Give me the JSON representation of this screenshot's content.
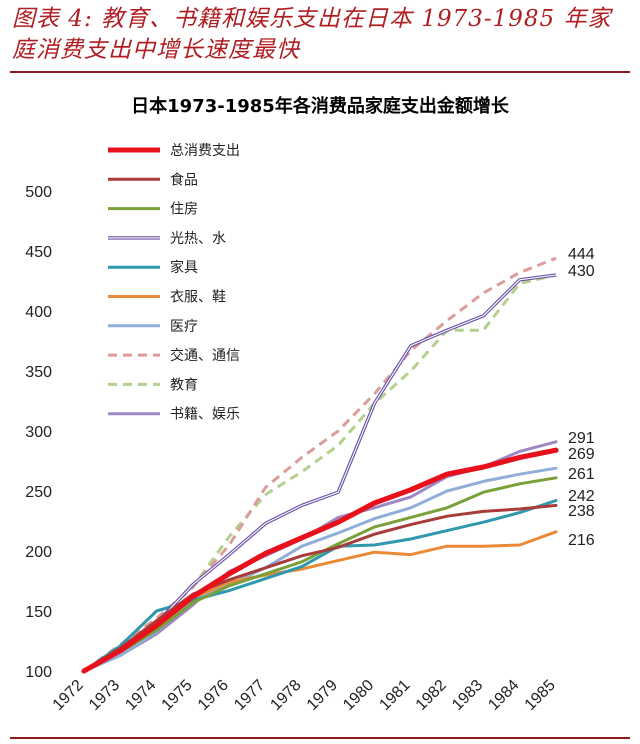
{
  "header": {
    "title": "图表 4:  教育、书籍和娱乐支出在日本 1973-1985 年家庭消费支出中增长速度最快"
  },
  "chart_data": {
    "type": "line",
    "title": "日本1973-1985年各消费品家庭支出金额增长",
    "xlabel": "",
    "ylabel": "",
    "x": [
      "1972",
      "1973",
      "1974",
      "1975",
      "1976",
      "1977",
      "1978",
      "1979",
      "1980",
      "1981",
      "1982",
      "1983",
      "1984",
      "1985"
    ],
    "ylim": [
      100,
      500
    ],
    "yticks": [
      100,
      150,
      200,
      250,
      300,
      350,
      400,
      450,
      500
    ],
    "grid": false,
    "legend_position": "top-left",
    "series": [
      {
        "name": "总消费支出",
        "color": "#e8101a",
        "style": "solid",
        "width": 5,
        "values": [
          100,
          117,
          138,
          162,
          181,
          198,
          211,
          224,
          240,
          251,
          264,
          270,
          278,
          284
        ]
      },
      {
        "name": "食品",
        "color": "#a83c3a",
        "style": "solid",
        "width": 3,
        "values": [
          100,
          119,
          142,
          164,
          176,
          186,
          196,
          203,
          214,
          222,
          229,
          233,
          235,
          238
        ]
      },
      {
        "name": "住房",
        "color": "#7aa039",
        "style": "solid",
        "width": 3,
        "values": [
          100,
          116,
          134,
          157,
          171,
          181,
          191,
          206,
          220,
          228,
          236,
          249,
          256,
          261
        ]
      },
      {
        "name": "光热、水",
        "color": "#6a52a8",
        "style": "double",
        "width": 3,
        "values": [
          100,
          118,
          140,
          172,
          197,
          223,
          238,
          249,
          323,
          371,
          384,
          396,
          426,
          430
        ]
      },
      {
        "name": "家具",
        "color": "#2f97ae",
        "style": "solid",
        "width": 3,
        "values": [
          100,
          121,
          150,
          159,
          167,
          177,
          187,
          204,
          205,
          210,
          217,
          224,
          232,
          242
        ]
      },
      {
        "name": "衣服、鞋",
        "color": "#e98b36",
        "style": "solid",
        "width": 3,
        "values": [
          100,
          117,
          139,
          161,
          174,
          180,
          185,
          192,
          199,
          197,
          204,
          204,
          205,
          216
        ]
      },
      {
        "name": "医疗",
        "color": "#8faed8",
        "style": "solid",
        "width": 3,
        "values": [
          100,
          113,
          133,
          159,
          172,
          186,
          204,
          215,
          227,
          236,
          250,
          258,
          264,
          269
        ]
      },
      {
        "name": "交通、通信",
        "color": "#dc9d9a",
        "style": "dashed",
        "width": 3,
        "values": [
          100,
          122,
          144,
          170,
          205,
          253,
          278,
          300,
          331,
          367,
          392,
          415,
          432,
          444
        ]
      },
      {
        "name": "教育",
        "color": "#b3d08c",
        "style": "dashed",
        "width": 3,
        "values": [
          100,
          118,
          142,
          170,
          212,
          247,
          266,
          288,
          323,
          350,
          384,
          384,
          423,
          430
        ]
      },
      {
        "name": "书籍、娱乐",
        "color": "#9d87c4",
        "style": "solid",
        "width": 3,
        "values": [
          100,
          113,
          131,
          155,
          183,
          196,
          210,
          228,
          236,
          245,
          262,
          270,
          283,
          291
        ]
      }
    ],
    "end_labels": [
      "444",
      "430",
      "291",
      "269",
      "261",
      "242",
      "238",
      "216"
    ]
  }
}
